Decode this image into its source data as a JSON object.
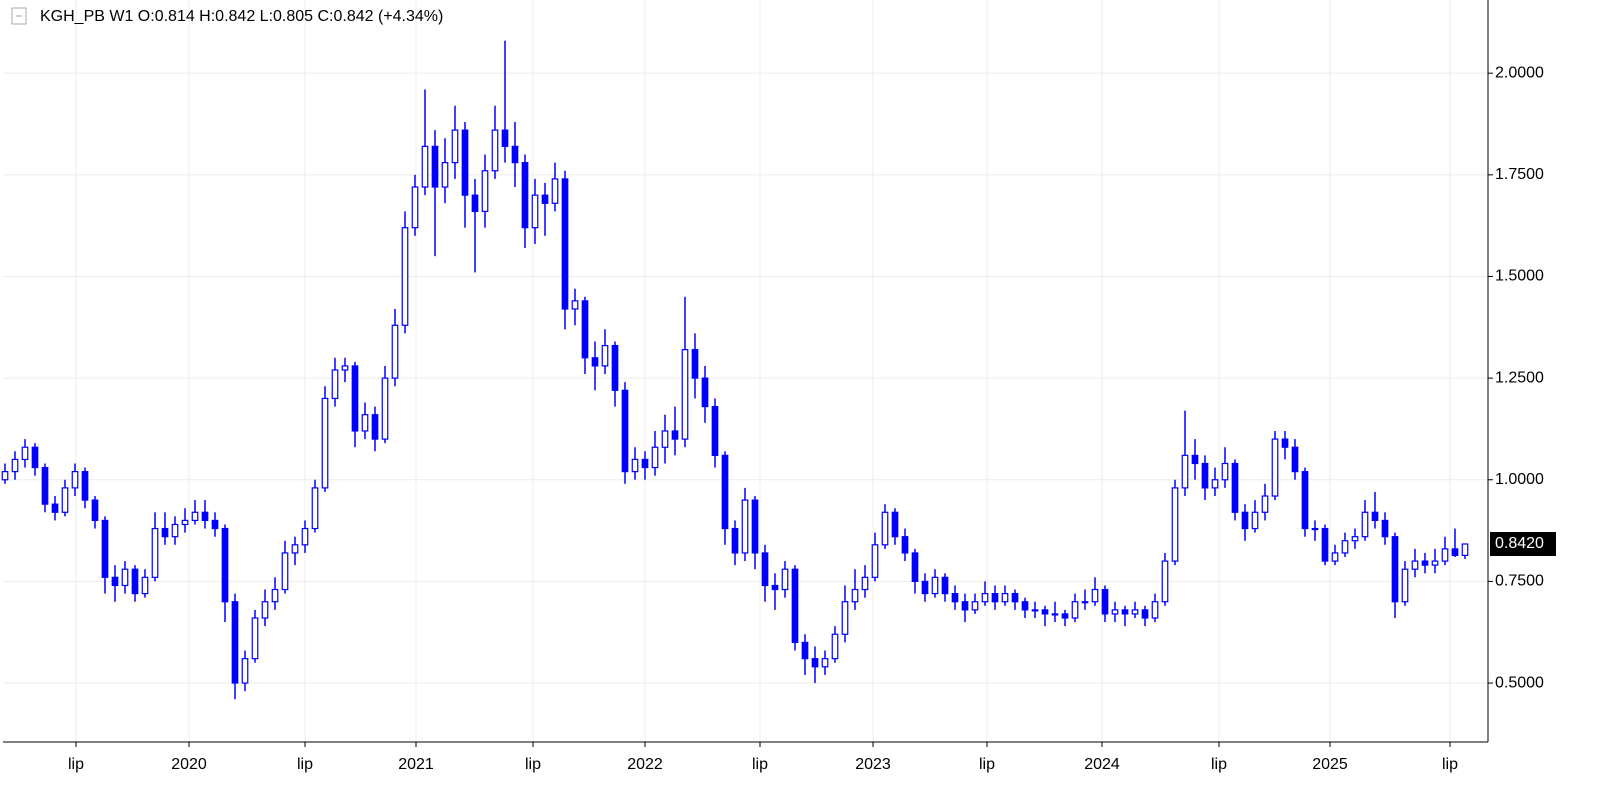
{
  "chart_data": {
    "type": "candlestick",
    "title": "KGH_PB  W1  O:0.814  H:0.842  L:0.805  C:0.842  (+4.34%)",
    "color": "#0000ff",
    "grid": true,
    "xlim": [
      -0.2,
      148.3
    ],
    "ylim": [
      0.355,
      2.18
    ],
    "yticks": [
      {
        "value": 0.5,
        "label": "0.5000"
      },
      {
        "value": 0.75,
        "label": "0.7500"
      },
      {
        "value": 1,
        "label": "1.0000"
      },
      {
        "value": 1.25,
        "label": "1.2500"
      },
      {
        "value": 1.5,
        "label": "1.5000"
      },
      {
        "value": 1.75,
        "label": "1.7500"
      },
      {
        "value": 2,
        "label": "2.0000"
      }
    ],
    "xticks": [
      {
        "value": 7.1,
        "label": "lip"
      },
      {
        "value": 18.4,
        "label": "2020"
      },
      {
        "value": 30,
        "label": "lip"
      },
      {
        "value": 41.1,
        "label": "2021"
      },
      {
        "value": 52.8,
        "label": "lip"
      },
      {
        "value": 64,
        "label": "2022"
      },
      {
        "value": 75.5,
        "label": "lip"
      },
      {
        "value": 86.8,
        "label": "2023"
      },
      {
        "value": 98.2,
        "label": "lip"
      },
      {
        "value": 109.7,
        "label": "2024"
      },
      {
        "value": 121.4,
        "label": "lip"
      },
      {
        "value": 132.5,
        "label": "2025"
      },
      {
        "value": 144.5,
        "label": "lip"
      }
    ],
    "last_price": {
      "value": 0.842,
      "label": "0.8420"
    },
    "candles": [
      [
        1.0,
        1.04,
        0.99,
        1.02
      ],
      [
        1.02,
        1.07,
        1.0,
        1.05
      ],
      [
        1.05,
        1.1,
        1.03,
        1.08
      ],
      [
        1.08,
        1.09,
        1.01,
        1.03
      ],
      [
        1.03,
        1.04,
        0.92,
        0.94
      ],
      [
        0.94,
        0.96,
        0.9,
        0.92
      ],
      [
        0.92,
        1.0,
        0.91,
        0.98
      ],
      [
        0.98,
        1.04,
        0.96,
        1.02
      ],
      [
        1.02,
        1.03,
        0.93,
        0.95
      ],
      [
        0.95,
        0.96,
        0.88,
        0.9
      ],
      [
        0.9,
        0.91,
        0.72,
        0.76
      ],
      [
        0.76,
        0.79,
        0.7,
        0.74
      ],
      [
        0.74,
        0.8,
        0.72,
        0.78
      ],
      [
        0.78,
        0.79,
        0.7,
        0.72
      ],
      [
        0.72,
        0.78,
        0.71,
        0.76
      ],
      [
        0.76,
        0.92,
        0.75,
        0.88
      ],
      [
        0.88,
        0.92,
        0.84,
        0.86
      ],
      [
        0.86,
        0.91,
        0.84,
        0.89
      ],
      [
        0.89,
        0.93,
        0.87,
        0.9
      ],
      [
        0.9,
        0.95,
        0.89,
        0.92
      ],
      [
        0.92,
        0.95,
        0.88,
        0.9
      ],
      [
        0.9,
        0.92,
        0.86,
        0.88
      ],
      [
        0.88,
        0.89,
        0.65,
        0.7
      ],
      [
        0.7,
        0.72,
        0.46,
        0.5
      ],
      [
        0.5,
        0.58,
        0.48,
        0.56
      ],
      [
        0.56,
        0.68,
        0.55,
        0.66
      ],
      [
        0.66,
        0.73,
        0.64,
        0.7
      ],
      [
        0.7,
        0.76,
        0.68,
        0.73
      ],
      [
        0.73,
        0.85,
        0.72,
        0.82
      ],
      [
        0.82,
        0.86,
        0.79,
        0.84
      ],
      [
        0.84,
        0.9,
        0.82,
        0.88
      ],
      [
        0.88,
        1.0,
        0.87,
        0.98
      ],
      [
        0.98,
        1.23,
        0.97,
        1.2
      ],
      [
        1.2,
        1.3,
        1.18,
        1.27
      ],
      [
        1.27,
        1.3,
        1.24,
        1.28
      ],
      [
        1.28,
        1.29,
        1.08,
        1.12
      ],
      [
        1.12,
        1.19,
        1.1,
        1.16
      ],
      [
        1.16,
        1.18,
        1.07,
        1.1
      ],
      [
        1.1,
        1.28,
        1.09,
        1.25
      ],
      [
        1.25,
        1.42,
        1.23,
        1.38
      ],
      [
        1.38,
        1.66,
        1.36,
        1.62
      ],
      [
        1.62,
        1.75,
        1.6,
        1.72
      ],
      [
        1.72,
        1.96,
        1.7,
        1.82
      ],
      [
        1.82,
        1.86,
        1.55,
        1.72
      ],
      [
        1.72,
        1.84,
        1.68,
        1.78
      ],
      [
        1.78,
        1.92,
        1.74,
        1.86
      ],
      [
        1.86,
        1.88,
        1.62,
        1.7
      ],
      [
        1.7,
        1.74,
        1.51,
        1.66
      ],
      [
        1.66,
        1.8,
        1.62,
        1.76
      ],
      [
        1.76,
        1.92,
        1.74,
        1.86
      ],
      [
        1.86,
        2.08,
        1.78,
        1.82
      ],
      [
        1.82,
        1.88,
        1.72,
        1.78
      ],
      [
        1.78,
        1.8,
        1.57,
        1.62
      ],
      [
        1.62,
        1.74,
        1.58,
        1.7
      ],
      [
        1.7,
        1.73,
        1.6,
        1.68
      ],
      [
        1.68,
        1.78,
        1.66,
        1.74
      ],
      [
        1.74,
        1.76,
        1.37,
        1.42
      ],
      [
        1.42,
        1.47,
        1.38,
        1.44
      ],
      [
        1.44,
        1.45,
        1.26,
        1.3
      ],
      [
        1.3,
        1.34,
        1.22,
        1.28
      ],
      [
        1.28,
        1.37,
        1.26,
        1.33
      ],
      [
        1.33,
        1.34,
        1.18,
        1.22
      ],
      [
        1.22,
        1.24,
        0.99,
        1.02
      ],
      [
        1.02,
        1.08,
        1.0,
        1.05
      ],
      [
        1.05,
        1.07,
        1.0,
        1.03
      ],
      [
        1.03,
        1.12,
        1.01,
        1.08
      ],
      [
        1.08,
        1.16,
        1.04,
        1.12
      ],
      [
        1.12,
        1.18,
        1.06,
        1.1
      ],
      [
        1.1,
        1.45,
        1.08,
        1.32
      ],
      [
        1.32,
        1.36,
        1.2,
        1.25
      ],
      [
        1.25,
        1.28,
        1.14,
        1.18
      ],
      [
        1.18,
        1.2,
        1.03,
        1.06
      ],
      [
        1.06,
        1.07,
        0.84,
        0.88
      ],
      [
        0.88,
        0.9,
        0.79,
        0.82
      ],
      [
        0.82,
        0.98,
        0.8,
        0.95
      ],
      [
        0.95,
        0.96,
        0.78,
        0.82
      ],
      [
        0.82,
        0.84,
        0.7,
        0.74
      ],
      [
        0.74,
        0.77,
        0.68,
        0.73
      ],
      [
        0.73,
        0.8,
        0.71,
        0.78
      ],
      [
        0.78,
        0.79,
        0.58,
        0.6
      ],
      [
        0.6,
        0.62,
        0.52,
        0.56
      ],
      [
        0.56,
        0.59,
        0.5,
        0.54
      ],
      [
        0.54,
        0.58,
        0.52,
        0.56
      ],
      [
        0.56,
        0.64,
        0.55,
        0.62
      ],
      [
        0.62,
        0.74,
        0.6,
        0.7
      ],
      [
        0.7,
        0.78,
        0.68,
        0.73
      ],
      [
        0.73,
        0.79,
        0.71,
        0.76
      ],
      [
        0.76,
        0.87,
        0.75,
        0.84
      ],
      [
        0.84,
        0.94,
        0.83,
        0.92
      ],
      [
        0.92,
        0.93,
        0.84,
        0.86
      ],
      [
        0.86,
        0.88,
        0.8,
        0.82
      ],
      [
        0.82,
        0.83,
        0.72,
        0.75
      ],
      [
        0.75,
        0.77,
        0.7,
        0.72
      ],
      [
        0.72,
        0.78,
        0.71,
        0.76
      ],
      [
        0.76,
        0.77,
        0.7,
        0.72
      ],
      [
        0.72,
        0.74,
        0.68,
        0.7
      ],
      [
        0.7,
        0.72,
        0.65,
        0.68
      ],
      [
        0.68,
        0.72,
        0.67,
        0.7
      ],
      [
        0.7,
        0.75,
        0.69,
        0.72
      ],
      [
        0.72,
        0.74,
        0.68,
        0.7
      ],
      [
        0.7,
        0.74,
        0.69,
        0.72
      ],
      [
        0.72,
        0.73,
        0.68,
        0.7
      ],
      [
        0.7,
        0.71,
        0.66,
        0.68
      ],
      [
        0.68,
        0.7,
        0.66,
        0.68
      ],
      [
        0.68,
        0.69,
        0.64,
        0.67
      ],
      [
        0.67,
        0.7,
        0.65,
        0.67
      ],
      [
        0.67,
        0.68,
        0.64,
        0.66
      ],
      [
        0.66,
        0.72,
        0.65,
        0.7
      ],
      [
        0.7,
        0.73,
        0.68,
        0.7
      ],
      [
        0.7,
        0.76,
        0.69,
        0.73
      ],
      [
        0.73,
        0.74,
        0.65,
        0.67
      ],
      [
        0.67,
        0.7,
        0.65,
        0.68
      ],
      [
        0.68,
        0.69,
        0.64,
        0.67
      ],
      [
        0.67,
        0.7,
        0.66,
        0.68
      ],
      [
        0.68,
        0.69,
        0.64,
        0.66
      ],
      [
        0.66,
        0.72,
        0.65,
        0.7
      ],
      [
        0.7,
        0.82,
        0.69,
        0.8
      ],
      [
        0.8,
        1.0,
        0.79,
        0.98
      ],
      [
        0.98,
        1.17,
        0.96,
        1.06
      ],
      [
        1.06,
        1.1,
        1.0,
        1.04
      ],
      [
        1.04,
        1.06,
        0.95,
        0.98
      ],
      [
        0.98,
        1.03,
        0.96,
        1.0
      ],
      [
        1.0,
        1.08,
        0.98,
        1.04
      ],
      [
        1.04,
        1.05,
        0.9,
        0.92
      ],
      [
        0.92,
        0.94,
        0.85,
        0.88
      ],
      [
        0.88,
        0.95,
        0.87,
        0.92
      ],
      [
        0.92,
        0.99,
        0.9,
        0.96
      ],
      [
        0.96,
        1.12,
        0.95,
        1.1
      ],
      [
        1.1,
        1.12,
        1.05,
        1.08
      ],
      [
        1.08,
        1.1,
        1.0,
        1.02
      ],
      [
        1.02,
        1.03,
        0.86,
        0.88
      ],
      [
        0.88,
        0.9,
        0.85,
        0.88
      ],
      [
        0.88,
        0.89,
        0.79,
        0.8
      ],
      [
        0.8,
        0.84,
        0.79,
        0.82
      ],
      [
        0.82,
        0.87,
        0.81,
        0.85
      ],
      [
        0.85,
        0.88,
        0.83,
        0.86
      ],
      [
        0.86,
        0.95,
        0.85,
        0.92
      ],
      [
        0.92,
        0.97,
        0.88,
        0.9
      ],
      [
        0.9,
        0.92,
        0.84,
        0.86
      ],
      [
        0.86,
        0.87,
        0.66,
        0.7
      ],
      [
        0.7,
        0.8,
        0.69,
        0.78
      ],
      [
        0.78,
        0.83,
        0.76,
        0.8
      ],
      [
        0.8,
        0.82,
        0.77,
        0.79
      ],
      [
        0.79,
        0.83,
        0.77,
        0.8
      ],
      [
        0.8,
        0.86,
        0.79,
        0.83
      ],
      [
        0.83,
        0.88,
        0.81,
        0.814
      ],
      [
        0.814,
        0.842,
        0.805,
        0.842
      ]
    ]
  }
}
